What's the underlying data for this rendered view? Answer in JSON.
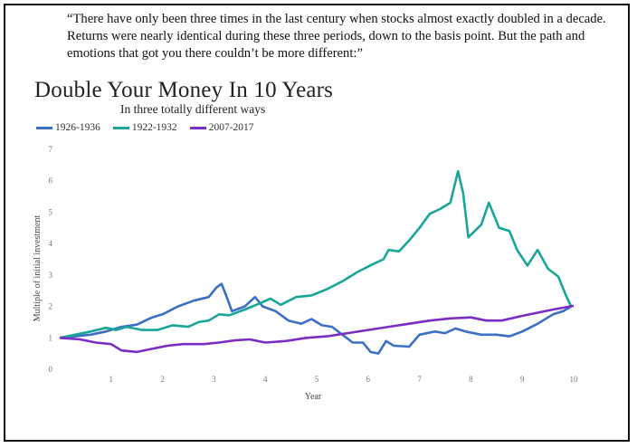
{
  "quote": "“There have only been three times in the last century when stocks almost exactly doubled in a decade. Returns were nearly identical during these three periods, down to the basis point. But the path and emotions that got you there couldn’t be more different:”",
  "chart_data": {
    "type": "line",
    "title": "Double Your Money In 10 Years",
    "subtitle": "In three totally different ways",
    "xlabel": "Year",
    "ylabel": "Multiple of initial investment",
    "xlim": [
      0,
      10
    ],
    "ylim": [
      0,
      7
    ],
    "x_ticks": [
      1,
      2,
      3,
      4,
      5,
      6,
      7,
      8,
      9,
      10
    ],
    "y_ticks": [
      0,
      1,
      2,
      3,
      4,
      5,
      6,
      7
    ],
    "grid": false,
    "legend_position": "top-left",
    "series": [
      {
        "name": "1926-1936",
        "color": "#3a6fc4",
        "points": [
          [
            0,
            1.0
          ],
          [
            0.3,
            1.05
          ],
          [
            0.6,
            1.1
          ],
          [
            0.9,
            1.2
          ],
          [
            1.2,
            1.35
          ],
          [
            1.5,
            1.42
          ],
          [
            1.8,
            1.65
          ],
          [
            2.0,
            1.75
          ],
          [
            2.3,
            2.0
          ],
          [
            2.6,
            2.18
          ],
          [
            2.9,
            2.3
          ],
          [
            3.05,
            2.6
          ],
          [
            3.15,
            2.72
          ],
          [
            3.25,
            2.3
          ],
          [
            3.35,
            1.85
          ],
          [
            3.6,
            2.0
          ],
          [
            3.8,
            2.3
          ],
          [
            3.95,
            2.0
          ],
          [
            4.2,
            1.85
          ],
          [
            4.45,
            1.55
          ],
          [
            4.7,
            1.45
          ],
          [
            4.9,
            1.6
          ],
          [
            5.1,
            1.4
          ],
          [
            5.3,
            1.35
          ],
          [
            5.5,
            1.1
          ],
          [
            5.7,
            0.85
          ],
          [
            5.9,
            0.85
          ],
          [
            6.05,
            0.55
          ],
          [
            6.2,
            0.5
          ],
          [
            6.35,
            0.9
          ],
          [
            6.5,
            0.75
          ],
          [
            6.8,
            0.72
          ],
          [
            7.0,
            1.1
          ],
          [
            7.3,
            1.2
          ],
          [
            7.5,
            1.15
          ],
          [
            7.7,
            1.3
          ],
          [
            7.9,
            1.2
          ],
          [
            8.2,
            1.1
          ],
          [
            8.5,
            1.1
          ],
          [
            8.75,
            1.05
          ],
          [
            9.0,
            1.2
          ],
          [
            9.3,
            1.45
          ],
          [
            9.6,
            1.75
          ],
          [
            9.8,
            1.85
          ],
          [
            9.95,
            2.0
          ]
        ]
      },
      {
        "name": "1922-1932",
        "color": "#1aa59a",
        "points": [
          [
            0,
            1.0
          ],
          [
            0.3,
            1.1
          ],
          [
            0.6,
            1.2
          ],
          [
            0.9,
            1.32
          ],
          [
            1.1,
            1.25
          ],
          [
            1.3,
            1.35
          ],
          [
            1.6,
            1.25
          ],
          [
            1.9,
            1.25
          ],
          [
            2.2,
            1.4
          ],
          [
            2.5,
            1.35
          ],
          [
            2.7,
            1.5
          ],
          [
            2.9,
            1.55
          ],
          [
            3.1,
            1.75
          ],
          [
            3.3,
            1.72
          ],
          [
            3.6,
            1.9
          ],
          [
            3.9,
            2.1
          ],
          [
            4.1,
            2.25
          ],
          [
            4.3,
            2.05
          ],
          [
            4.6,
            2.3
          ],
          [
            4.9,
            2.35
          ],
          [
            5.2,
            2.55
          ],
          [
            5.5,
            2.8
          ],
          [
            5.8,
            3.1
          ],
          [
            6.1,
            3.35
          ],
          [
            6.3,
            3.5
          ],
          [
            6.4,
            3.8
          ],
          [
            6.6,
            3.75
          ],
          [
            6.8,
            4.1
          ],
          [
            7.0,
            4.5
          ],
          [
            7.2,
            4.95
          ],
          [
            7.4,
            5.1
          ],
          [
            7.6,
            5.3
          ],
          [
            7.75,
            6.3
          ],
          [
            7.85,
            5.6
          ],
          [
            7.95,
            4.2
          ],
          [
            8.2,
            4.6
          ],
          [
            8.35,
            5.3
          ],
          [
            8.55,
            4.5
          ],
          [
            8.75,
            4.4
          ],
          [
            8.9,
            3.8
          ],
          [
            9.1,
            3.3
          ],
          [
            9.3,
            3.8
          ],
          [
            9.5,
            3.2
          ],
          [
            9.7,
            2.95
          ],
          [
            9.85,
            2.35
          ],
          [
            9.95,
            2.0
          ]
        ]
      },
      {
        "name": "2007-2017",
        "color": "#7a2cc4",
        "points": [
          [
            0,
            1.0
          ],
          [
            0.4,
            0.95
          ],
          [
            0.7,
            0.85
          ],
          [
            1.0,
            0.8
          ],
          [
            1.2,
            0.6
          ],
          [
            1.5,
            0.55
          ],
          [
            1.8,
            0.65
          ],
          [
            2.1,
            0.75
          ],
          [
            2.4,
            0.8
          ],
          [
            2.8,
            0.8
          ],
          [
            3.1,
            0.85
          ],
          [
            3.4,
            0.92
          ],
          [
            3.7,
            0.95
          ],
          [
            4.0,
            0.85
          ],
          [
            4.4,
            0.9
          ],
          [
            4.8,
            1.0
          ],
          [
            5.2,
            1.05
          ],
          [
            5.6,
            1.15
          ],
          [
            6.0,
            1.25
          ],
          [
            6.4,
            1.35
          ],
          [
            6.8,
            1.45
          ],
          [
            7.2,
            1.55
          ],
          [
            7.6,
            1.62
          ],
          [
            8.0,
            1.65
          ],
          [
            8.3,
            1.55
          ],
          [
            8.6,
            1.55
          ],
          [
            9.0,
            1.7
          ],
          [
            9.3,
            1.8
          ],
          [
            9.6,
            1.9
          ],
          [
            10.0,
            2.02
          ]
        ]
      }
    ]
  }
}
